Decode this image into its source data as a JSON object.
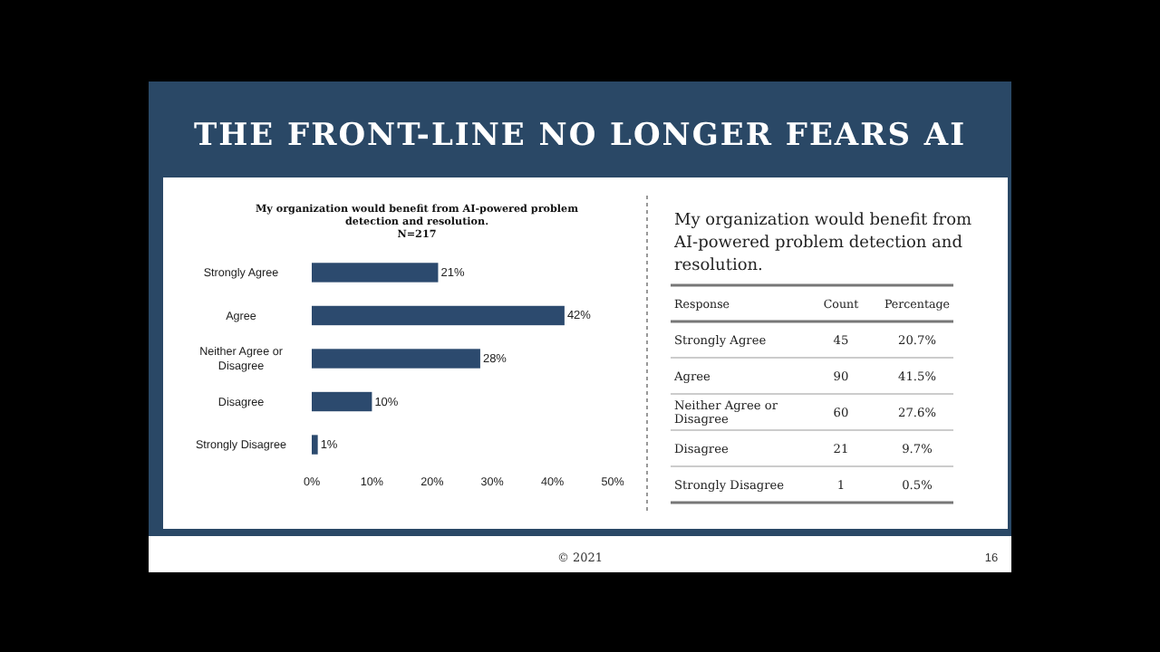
{
  "chart_data": [
    {
      "type": "bar",
      "orientation": "horizontal",
      "title": "My organization would benefit from AI-powered problem detection and resolution.",
      "subtitle": "N=217",
      "categories": [
        "Strongly Agree",
        "Agree",
        "Neither Agree or Disagree",
        "Disagree",
        "Strongly Disagree"
      ],
      "values": [
        21,
        42,
        28,
        10,
        1
      ],
      "value_labels": [
        "21%",
        "42%",
        "28%",
        "10%",
        "1%"
      ],
      "color": "#2c4a6e",
      "xlim": [
        0,
        50
      ],
      "xticks": [
        {
          "value": 0,
          "label": "0%"
        },
        {
          "value": 10,
          "label": "10%"
        },
        {
          "value": 20,
          "label": "20%"
        },
        {
          "value": 30,
          "label": "30%"
        },
        {
          "value": 40,
          "label": "40%"
        },
        {
          "value": 50,
          "label": "50%"
        }
      ],
      "grid": false,
      "annotations": [
        "THE FRONT-LINE NO LONGER FEARS AI",
        "© 2021",
        "16"
      ]
    },
    {
      "type": "other",
      "title": "My organization would benefit from AI-powered problem detection and resolution.",
      "annotations": [
        "Response",
        "Count",
        "Percentage",
        "Strongly Agree",
        "45",
        "20.7%",
        "Agree",
        "90",
        "41.5%",
        "Neither Agree or Disagree",
        "60",
        "27.6%",
        "Disagree",
        "21",
        "9.7%",
        "Strongly Disagree",
        "1",
        "0.5%"
      ]
    }
  ]
}
